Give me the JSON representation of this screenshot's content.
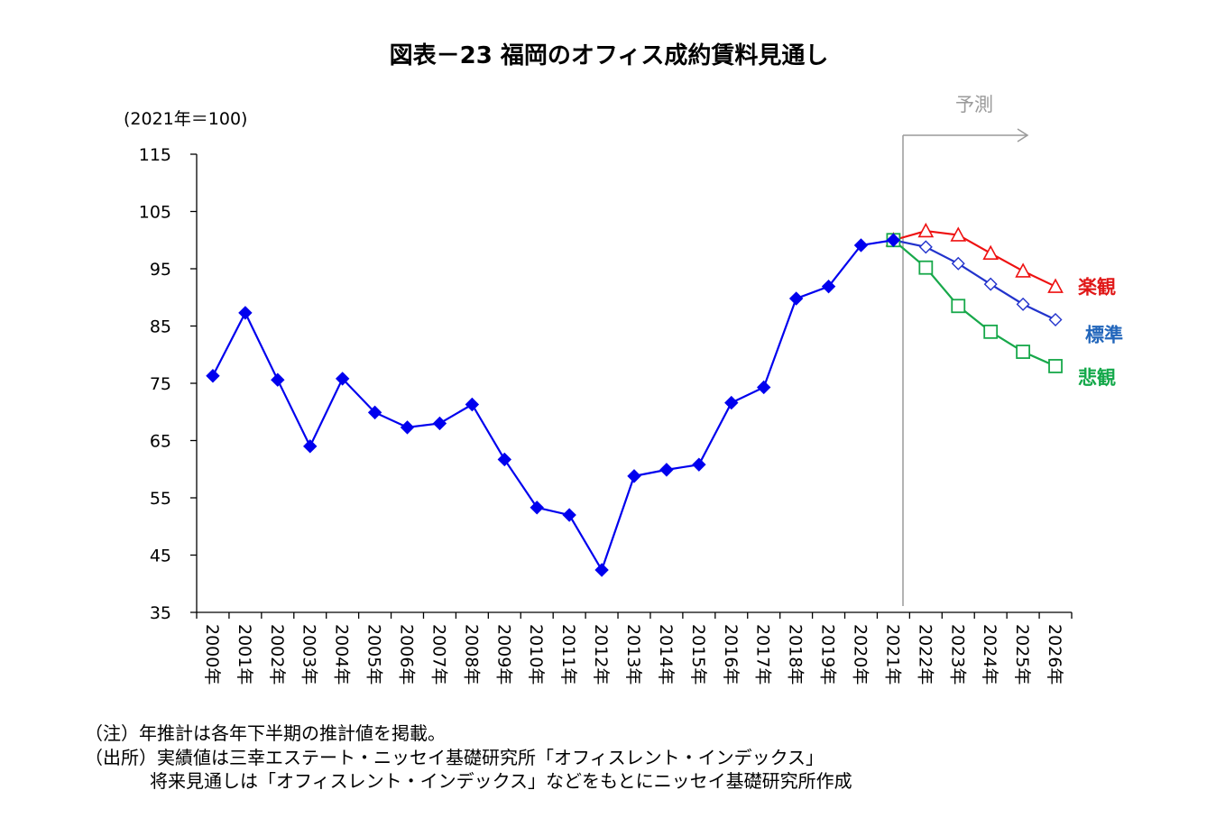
{
  "chart_data": {
    "type": "line",
    "title": "図表－23 福岡のオフィス成約賃料見通し",
    "unit_label": "(2021年＝100)",
    "forecast_label": "予測",
    "ylim": [
      35,
      115
    ],
    "yticks": [
      35,
      45,
      55,
      65,
      75,
      85,
      95,
      105,
      115
    ],
    "categories": [
      "2000年",
      "2001年",
      "2002年",
      "2003年",
      "2004年",
      "2005年",
      "2006年",
      "2007年",
      "2008年",
      "2009年",
      "2010年",
      "2011年",
      "2012年",
      "2013年",
      "2014年",
      "2015年",
      "2016年",
      "2017年",
      "2018年",
      "2019年",
      "2020年",
      "2021年",
      "2022年",
      "2023年",
      "2024年",
      "2025年",
      "2026年"
    ],
    "forecast_start": "2021年",
    "series": [
      {
        "name": "実績",
        "color": "#0000ee",
        "marker": "filled-diamond",
        "values": [
          76.3,
          87.3,
          75.6,
          64.0,
          75.8,
          69.9,
          67.3,
          68.0,
          71.3,
          61.7,
          53.3,
          52.0,
          42.4,
          58.8,
          59.9,
          60.8,
          71.6,
          74.3,
          89.8,
          91.9,
          99.1,
          100.0,
          null,
          null,
          null,
          null,
          null
        ]
      },
      {
        "name": "楽観",
        "color": "#ee1111",
        "marker": "open-triangle",
        "values": [
          null,
          null,
          null,
          null,
          null,
          null,
          null,
          null,
          null,
          null,
          null,
          null,
          null,
          null,
          null,
          null,
          null,
          null,
          null,
          null,
          null,
          100.0,
          101.6,
          100.9,
          97.7,
          94.6,
          91.9
        ]
      },
      {
        "name": "標準",
        "color": "#2233cc",
        "marker": "open-diamond",
        "values": [
          null,
          null,
          null,
          null,
          null,
          null,
          null,
          null,
          null,
          null,
          null,
          null,
          null,
          null,
          null,
          null,
          null,
          null,
          null,
          null,
          null,
          100.0,
          98.8,
          95.9,
          92.3,
          88.8,
          86.1
        ]
      },
      {
        "name": "悲観",
        "color": "#17a84a",
        "marker": "open-square",
        "values": [
          null,
          null,
          null,
          null,
          null,
          null,
          null,
          null,
          null,
          null,
          null,
          null,
          null,
          null,
          null,
          null,
          null,
          null,
          null,
          null,
          null,
          100.0,
          95.2,
          88.5,
          84.0,
          80.5,
          78.0
        ]
      }
    ],
    "series_labels": [
      {
        "name": "楽観",
        "color": "#e01818"
      },
      {
        "name": "標準",
        "color": "#2266bb"
      },
      {
        "name": "悲観",
        "color": "#14a84a"
      }
    ]
  },
  "notes": {
    "note1": "（注）年推計は各年下半期の推計値を掲載。",
    "source1": "（出所）実績値は三幸エステート・ニッセイ基礎研究所「オフィスレント・インデックス」",
    "source2": "将来見通しは「オフィスレント・インデックス」などをもとにニッセイ基礎研究所作成"
  }
}
